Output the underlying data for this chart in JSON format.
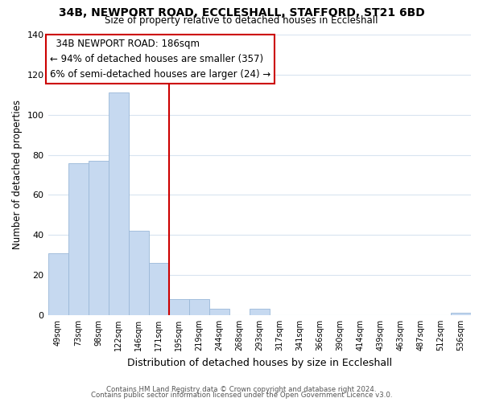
{
  "title": "34B, NEWPORT ROAD, ECCLESHALL, STAFFORD, ST21 6BD",
  "subtitle": "Size of property relative to detached houses in Eccleshall",
  "xlabel": "Distribution of detached houses by size in Eccleshall",
  "ylabel": "Number of detached properties",
  "bar_labels": [
    "49sqm",
    "73sqm",
    "98sqm",
    "122sqm",
    "146sqm",
    "171sqm",
    "195sqm",
    "219sqm",
    "244sqm",
    "268sqm",
    "293sqm",
    "317sqm",
    "341sqm",
    "366sqm",
    "390sqm",
    "414sqm",
    "439sqm",
    "463sqm",
    "487sqm",
    "512sqm",
    "536sqm"
  ],
  "bar_values": [
    31,
    76,
    77,
    111,
    42,
    26,
    8,
    8,
    3,
    0,
    3,
    0,
    0,
    0,
    0,
    0,
    0,
    0,
    0,
    0,
    1
  ],
  "bar_color": "#c6d9f0",
  "bar_edge_color": "#9ab8d8",
  "vline_color": "#cc0000",
  "annotation_title": "34B NEWPORT ROAD: 186sqm",
  "annotation_line1": "← 94% of detached houses are smaller (357)",
  "annotation_line2": "6% of semi-detached houses are larger (24) →",
  "annotation_box_color": "#ffffff",
  "annotation_box_edge": "#cc0000",
  "ylim": [
    0,
    140
  ],
  "yticks": [
    0,
    20,
    40,
    60,
    80,
    100,
    120,
    140
  ],
  "footer1": "Contains HM Land Registry data © Crown copyright and database right 2024.",
  "footer2": "Contains public sector information licensed under the Open Government Licence v3.0.",
  "bg_color": "#ffffff",
  "grid_color": "#d8e4f0"
}
